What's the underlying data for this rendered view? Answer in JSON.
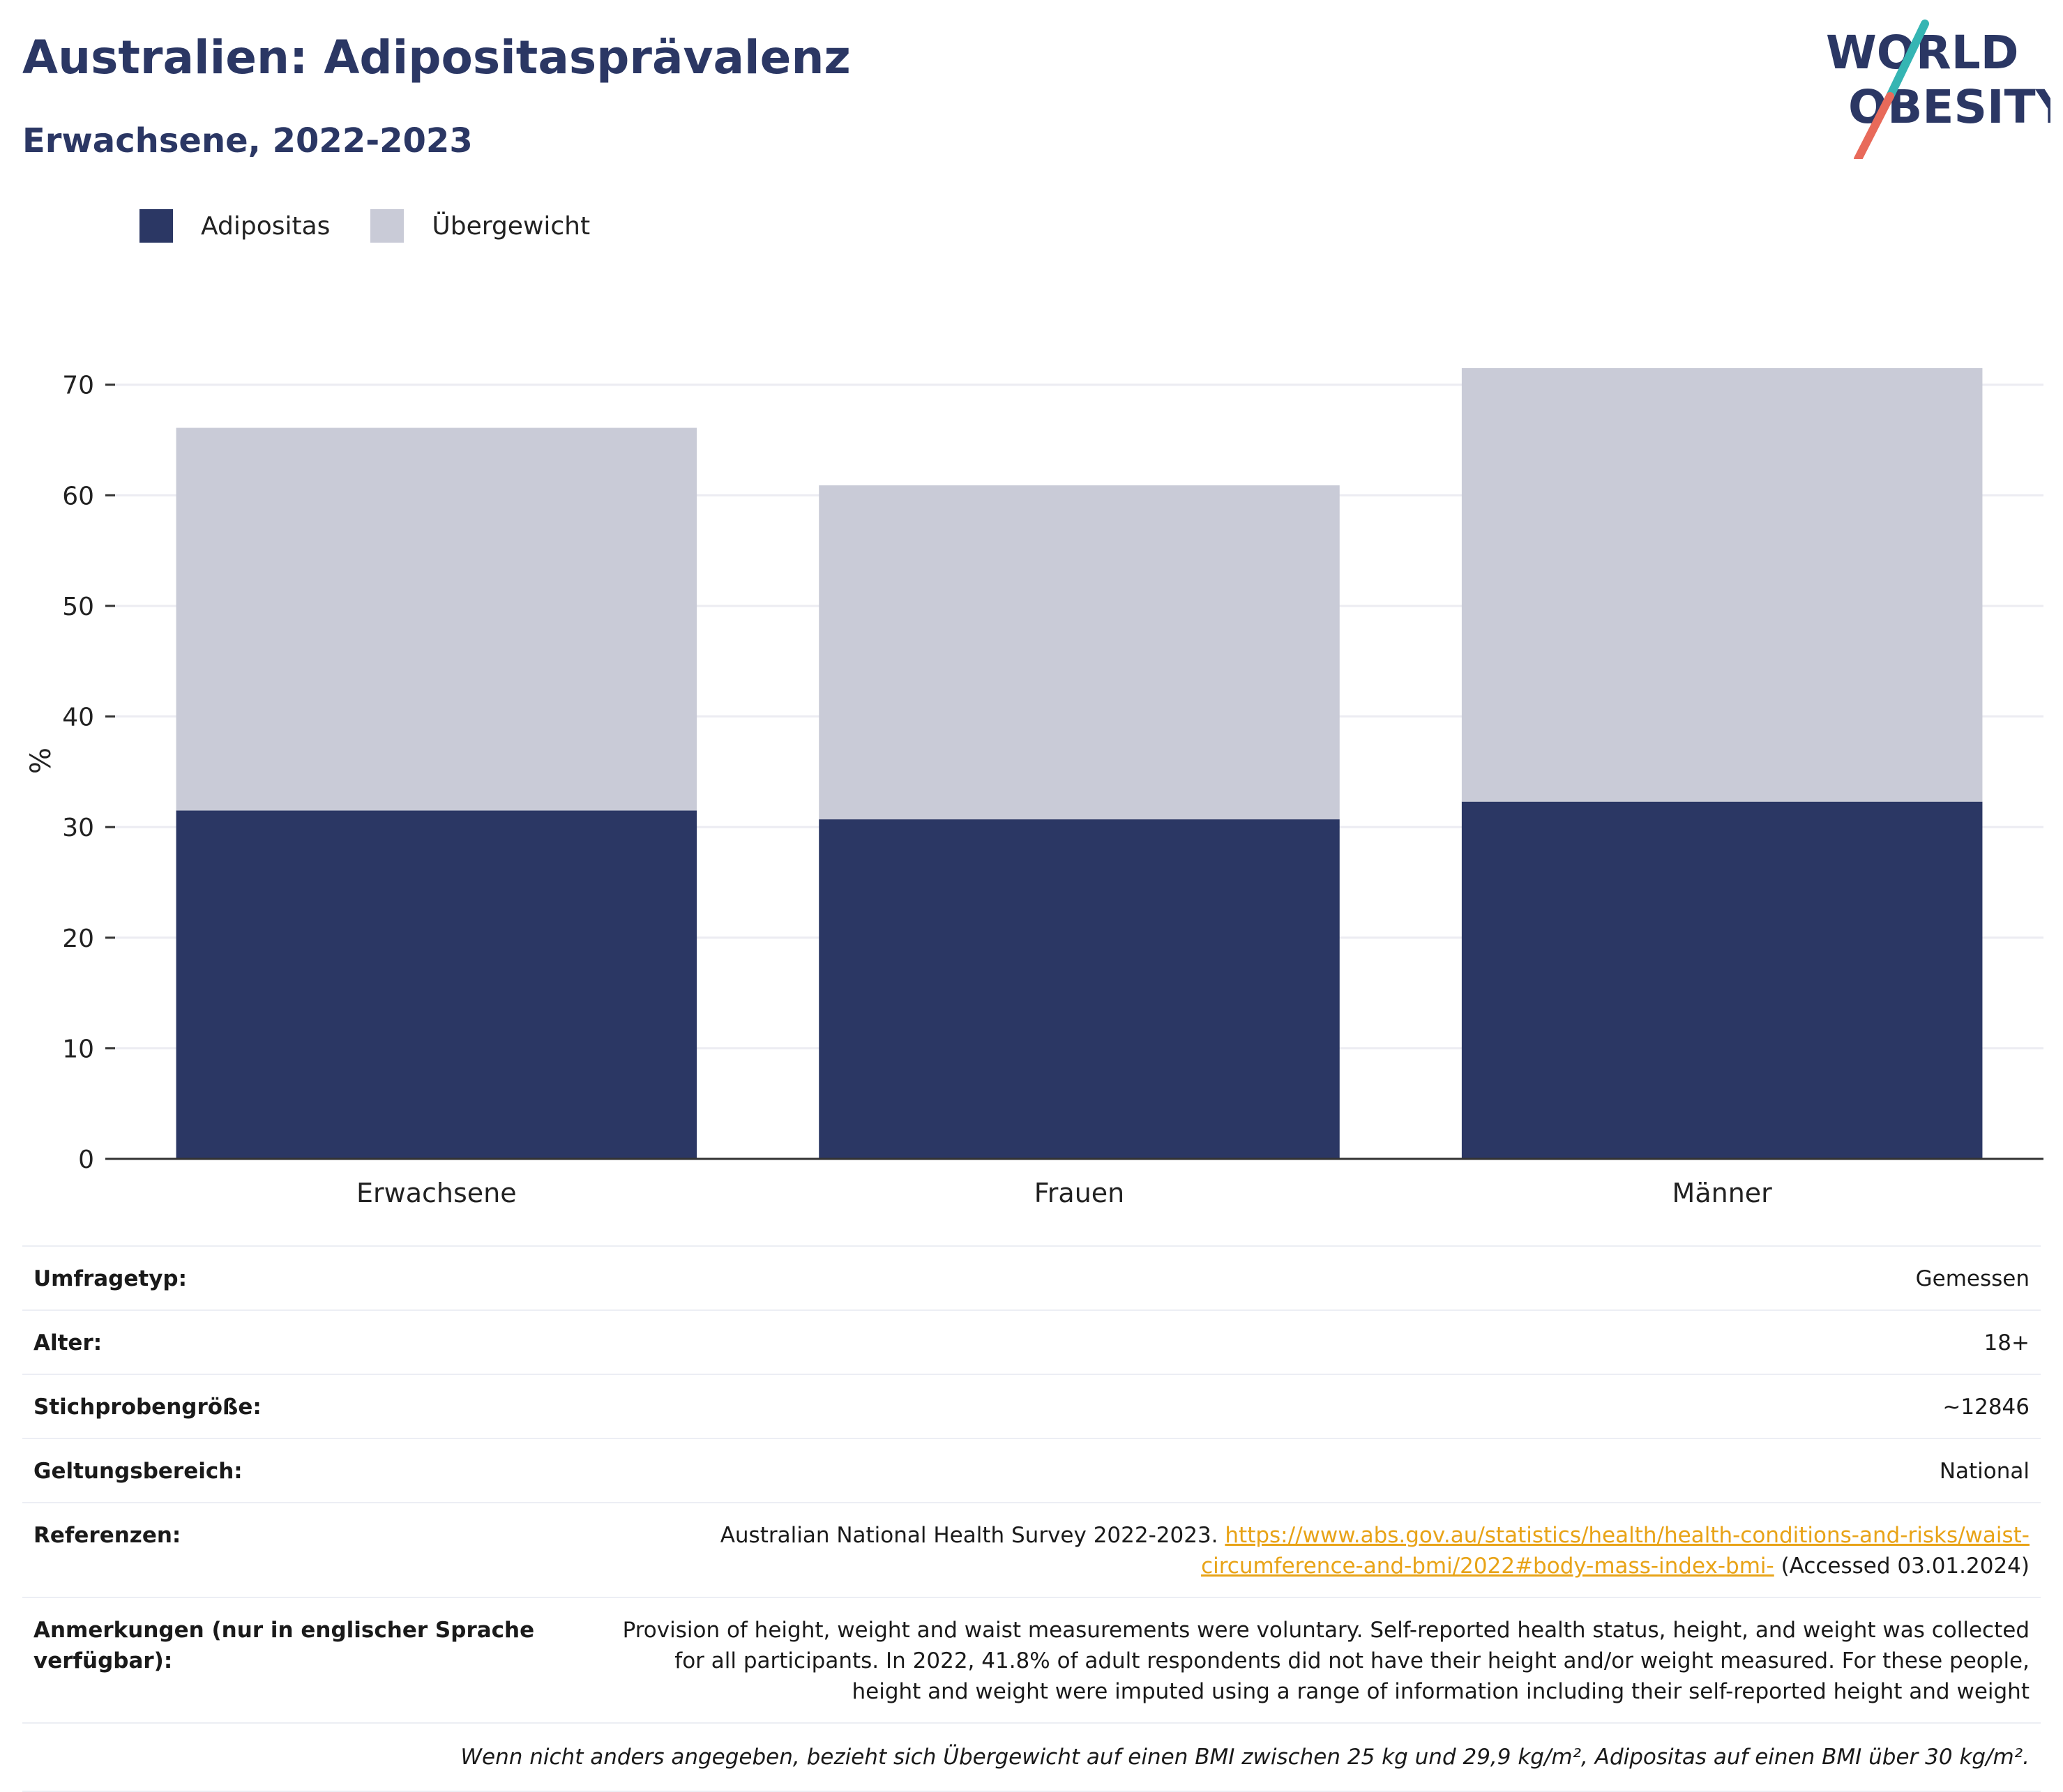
{
  "header": {
    "title": "Australien: Adipositasprävalenz",
    "subtitle": "Erwachsene, 2022-2023"
  },
  "logo": {
    "line1": "WORLD",
    "line2": "OBESITY"
  },
  "colors": {
    "adipositas": "#2b3764",
    "uebergewicht": "#c9cbd7",
    "link": "#e8a317",
    "logo_teal": "#35b5b3",
    "logo_coral": "#e86a5a",
    "axis": "#333333",
    "grid": "#ececf2"
  },
  "chart_data": {
    "type": "bar",
    "stacked": true,
    "categories": [
      "Erwachsene",
      "Frauen",
      "Männer"
    ],
    "series": [
      {
        "name": "Adipositas",
        "values": [
          31.5,
          30.7,
          32.3
        ]
      },
      {
        "name": "Übergewicht",
        "values": [
          34.6,
          30.2,
          39.2
        ]
      }
    ],
    "ylabel": "%",
    "xlabel": "",
    "ylim": [
      0,
      72
    ],
    "yticks": [
      0,
      10,
      20,
      30,
      40,
      50,
      60,
      70
    ],
    "grid": true,
    "legend": "top-left"
  },
  "meta": {
    "rows": [
      {
        "label": "Umfragetyp:",
        "value": "Gemessen"
      },
      {
        "label": "Alter:",
        "value": "18+"
      },
      {
        "label": "Stichprobengröße:",
        "value": "~12846"
      },
      {
        "label": "Geltungsbereich:",
        "value": "National"
      }
    ],
    "references": {
      "label": "Referenzen:",
      "text_before": "Australian National Health Survey 2022-2023.",
      "link_line1": "https://www.abs.gov.au/statistics/health/health-conditions-and-risks/waist-",
      "link_line2": "circumference-and-bmi/2022#body-mass-index-bmi-",
      "text_after": "(Accessed 03.01.2024)"
    },
    "notes": {
      "label": "Anmerkungen (nur in englischer Sprache verfügbar):",
      "value": "Provision of height, weight and waist measurements were voluntary. Self-reported health status, height, and weight was collected for all participants. In 2022, 41.8% of adult respondents did not have their height and/or weight measured. For these people, height and weight were imputed using a range of information including their self-reported height and weight"
    },
    "footnote": "Wenn nicht anders angegeben, bezieht sich Übergewicht auf einen BMI zwischen 25 kg und 29,9 kg/m², Adipositas auf einen BMI über 30 kg/m²."
  }
}
